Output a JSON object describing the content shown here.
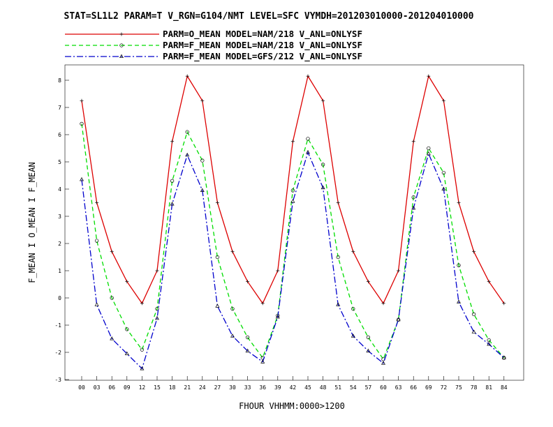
{
  "chart_data": {
    "type": "line",
    "title": "STAT=SL1L2 PARAM=T V_RGN=G104/NMT LEVEL=SFC VYMDH=201203010000-201204010000",
    "xlabel": "FHOUR VHHMM:0000>1200",
    "ylabel": "F_MEAN I O_MEAN I F_MEAN",
    "categories": [
      "00",
      "03",
      "06",
      "09",
      "12",
      "15",
      "18",
      "21",
      "24",
      "27",
      "30",
      "33",
      "36",
      "39",
      "42",
      "45",
      "48",
      "51",
      "54",
      "57",
      "60",
      "63",
      "66",
      "69",
      "72",
      "75",
      "78",
      "81",
      "84"
    ],
    "ylim": [
      -3,
      8.5
    ],
    "yticks": [
      -3,
      -2,
      -1,
      0,
      1,
      2,
      3,
      4,
      5,
      6,
      7,
      8
    ],
    "series": [
      {
        "name": "PARM=O_MEAN MODEL=NAM/218 V_ANL=ONLYSF",
        "color": "#dd0000",
        "dash": "solid",
        "marker": "plus",
        "values": [
          7.25,
          3.5,
          1.7,
          0.6,
          -0.2,
          1.0,
          5.75,
          8.15,
          7.25,
          3.5,
          1.7,
          0.6,
          -0.2,
          1.0,
          5.75,
          8.15,
          7.25,
          3.5,
          1.7,
          0.6,
          -0.2,
          1.0,
          5.75,
          8.15,
          7.25,
          3.5,
          1.7,
          0.6,
          -0.2
        ]
      },
      {
        "name": "PARM=F_MEAN MODEL=NAM/218 V_ANL=ONLYSF",
        "color": "#00dd00",
        "dash": "dashed",
        "marker": "circle",
        "values": [
          6.4,
          2.1,
          0.0,
          -1.15,
          -1.9,
          -0.4,
          4.3,
          6.1,
          5.05,
          1.5,
          -0.4,
          -1.45,
          -2.2,
          -0.65,
          3.95,
          5.85,
          4.9,
          1.5,
          -0.4,
          -1.45,
          -2.25,
          -0.8,
          3.7,
          5.5,
          4.6,
          1.2,
          -0.6,
          -1.55,
          -2.2
        ]
      },
      {
        "name": "PARM=F_MEAN MODEL=GFS/212 V_ANL=ONLYSF",
        "color": "#0000cc",
        "dash": "dashdot",
        "marker": "triangle",
        "values": [
          4.35,
          -0.25,
          -1.5,
          -2.05,
          -2.6,
          -0.75,
          3.45,
          5.25,
          3.95,
          -0.3,
          -1.4,
          -1.95,
          -2.35,
          -0.7,
          3.55,
          5.35,
          4.05,
          -0.25,
          -1.4,
          -1.95,
          -2.4,
          -0.8,
          3.3,
          5.3,
          4.0,
          -0.15,
          -1.25,
          -1.7,
          -2.2
        ]
      }
    ],
    "legend_position": "top",
    "grid": false
  }
}
